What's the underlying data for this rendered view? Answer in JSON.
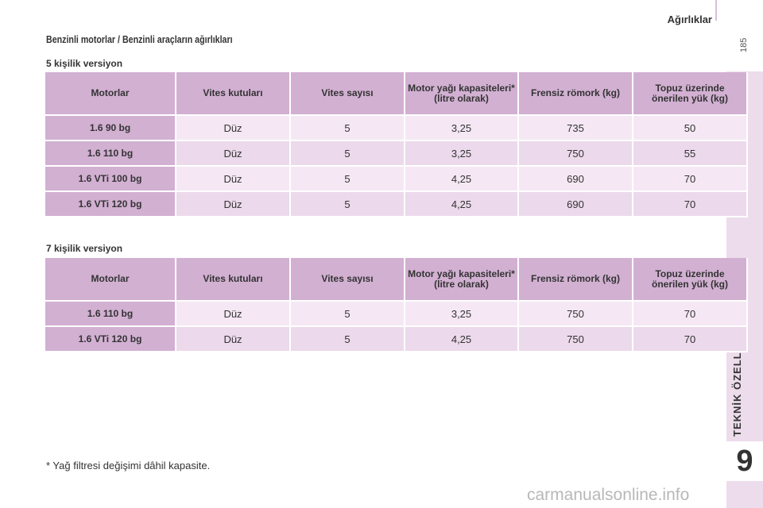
{
  "header": {
    "title": "Ağırlıklar",
    "page_number": "185"
  },
  "side": {
    "chapter_title": "TEKNİK ÖZELLİKLER",
    "chapter_number": "9"
  },
  "section_title": "Benzinli motorlar / Benzinli araçların ağırlıkları",
  "columns": [
    "Motorlar",
    "Vites kutuları",
    "Vites sayısı",
    "Motor yağı kapasiteleri* (litre olarak)",
    "Frensiz römork (kg)",
    "Topuz üzerinde önerilen yük (kg)"
  ],
  "tables": [
    {
      "subtitle": "5 kişilik versiyon",
      "rows": [
        [
          "1.6 90 bg",
          "Düz",
          "5",
          "3,25",
          "735",
          "50"
        ],
        [
          "1.6 110 bg",
          "Düz",
          "5",
          "3,25",
          "750",
          "55"
        ],
        [
          "1.6 VTi 100 bg",
          "Düz",
          "5",
          "4,25",
          "690",
          "70"
        ],
        [
          "1.6 VTi 120 bg",
          "Düz",
          "5",
          "4,25",
          "690",
          "70"
        ]
      ]
    },
    {
      "subtitle": "7 kişilik versiyon",
      "rows": [
        [
          "1.6 110 bg",
          "Düz",
          "5",
          "3,25",
          "750",
          "70"
        ],
        [
          "1.6 VTi 120 bg",
          "Düz",
          "5",
          "4,25",
          "750",
          "70"
        ]
      ]
    }
  ],
  "footnote": "* Yağ filtresi değişimi dâhil kapasite.",
  "watermark": "carmanualsonline.info",
  "colors": {
    "header_cell": "#d2b0d2",
    "row_light": "#f5e8f4",
    "row_dark": "#ecd9eb",
    "side_band": "#eddcec"
  }
}
